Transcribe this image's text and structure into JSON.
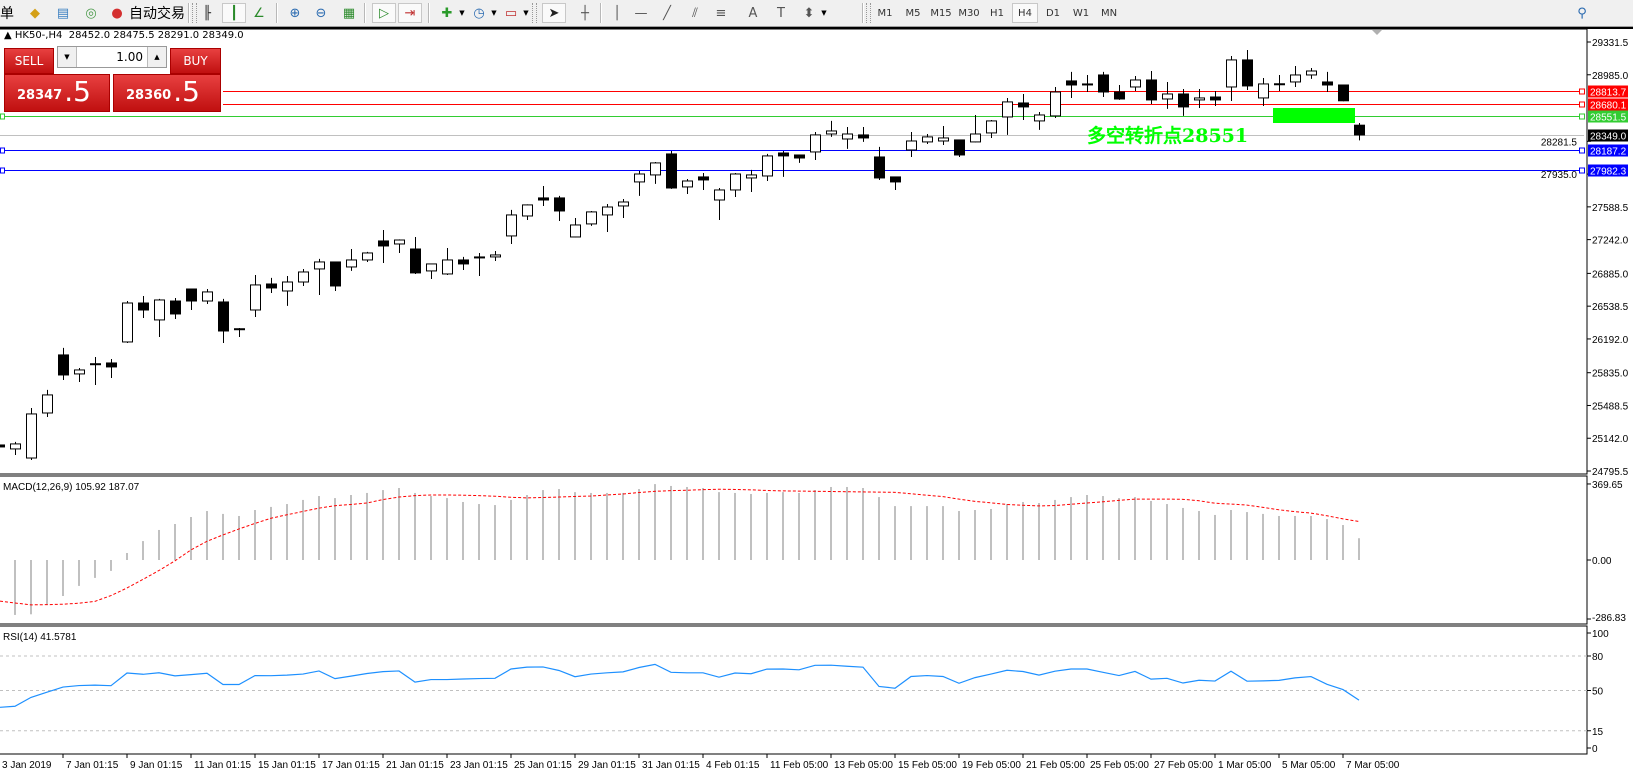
{
  "toolbar": {
    "items": [
      {
        "type": "text",
        "label": "单",
        "icon": "menu-text"
      },
      {
        "type": "icon",
        "icon": "folder-icon",
        "glyph": "◆",
        "color": "#d4a017"
      },
      {
        "type": "icon",
        "icon": "market-watch-icon",
        "glyph": "▤",
        "color": "#3a7fc0"
      },
      {
        "type": "icon",
        "icon": "signal-icon",
        "glyph": "◎",
        "color": "#4a9a4a"
      },
      {
        "type": "icon",
        "icon": "auto-trading-icon",
        "glyph": "●",
        "color": "#d43030"
      },
      {
        "type": "text",
        "label": "自动交易",
        "icon": "auto-trading-label"
      },
      {
        "type": "icon",
        "icon": "bar-chart-icon",
        "glyph": "╟",
        "color": "#333"
      },
      {
        "type": "icon",
        "icon": "candlestick-icon",
        "glyph": "┃",
        "color": "#2a8a2a",
        "selected": true
      },
      {
        "type": "icon",
        "icon": "line-chart-icon",
        "glyph": "∠",
        "color": "#2a8a2a"
      },
      {
        "type": "icon",
        "icon": "zoom-in-icon",
        "glyph": "⊕",
        "color": "#2a6ab0"
      },
      {
        "type": "icon",
        "icon": "zoom-out-icon",
        "glyph": "⊖",
        "color": "#2a6ab0"
      },
      {
        "type": "icon",
        "icon": "tile-windows-icon",
        "glyph": "▦",
        "color": "#2a8a2a"
      },
      {
        "type": "icon",
        "icon": "auto-scroll-icon",
        "glyph": "▷",
        "color": "#2a8a2a",
        "selected": true
      },
      {
        "type": "icon",
        "icon": "chart-shift-icon",
        "glyph": "⇥",
        "color": "#c03030",
        "selected": true
      },
      {
        "type": "icon",
        "icon": "new-indicator-icon",
        "glyph": "✚",
        "color": "#2a9a2a"
      },
      {
        "type": "icon",
        "icon": "periods-clock-icon",
        "glyph": "◷",
        "color": "#2a6ab0"
      },
      {
        "type": "icon",
        "icon": "templates-icon",
        "glyph": "▭",
        "color": "#c03030"
      },
      {
        "type": "icon",
        "icon": "cursor-arrow-icon",
        "glyph": "➤",
        "color": "#222",
        "selected": true
      },
      {
        "type": "icon",
        "icon": "crosshair-icon",
        "glyph": "┼",
        "color": "#555"
      },
      {
        "type": "icon",
        "icon": "vertical-line-icon",
        "glyph": "│",
        "color": "#555"
      },
      {
        "type": "icon",
        "icon": "horizontal-line-icon",
        "glyph": "—",
        "color": "#555"
      },
      {
        "type": "icon",
        "icon": "trendline-icon",
        "glyph": "╱",
        "color": "#555"
      },
      {
        "type": "icon",
        "icon": "equidistant-channel-icon",
        "glyph": "⫽",
        "color": "#555"
      },
      {
        "type": "icon",
        "icon": "fibonacci-icon",
        "glyph": "≡",
        "color": "#555"
      },
      {
        "type": "icon",
        "icon": "text-icon",
        "glyph": "A",
        "color": "#555"
      },
      {
        "type": "icon",
        "icon": "text-label-icon",
        "glyph": "T",
        "color": "#555"
      },
      {
        "type": "icon",
        "icon": "arrows-icon",
        "glyph": "⬍",
        "color": "#555"
      }
    ],
    "timeframes": [
      "M1",
      "M5",
      "M15",
      "M30",
      "H1",
      "H4",
      "D1",
      "W1",
      "MN"
    ],
    "active_timeframe": "H4",
    "search_icon": "search-icon"
  },
  "chart": {
    "symbol_line": "HK50-,H4  28452.0 28475.5 28291.0 28349.0",
    "annotation": "多空转折点28551",
    "annotation_color": "#00ff00",
    "highlight_color": "#00ff00",
    "price_axis": [
      "29331.5",
      "28985.0",
      "28281.5",
      "27935.0",
      "27588.5",
      "27242.0",
      "26885.0",
      "26538.5",
      "26192.0",
      "25835.0",
      "25488.5",
      "25142.0",
      "24795.5"
    ],
    "lines": [
      {
        "price": "28813.7",
        "color": "#ff0000",
        "from_bar": 14
      },
      {
        "price": "28680.1",
        "color": "#ff0000",
        "from_bar": 14
      },
      {
        "price": "28551.5",
        "color": "#32cd32",
        "from_bar": 0
      },
      {
        "price": "28349.0",
        "color": "#c0c0c0",
        "label_bg": "#000000",
        "from_bar": 0
      },
      {
        "price": "28187.2",
        "color": "#0000ff",
        "from_bar": 0
      },
      {
        "price": "27982.3",
        "color": "#0000ff",
        "from_bar": 0
      }
    ],
    "bull_color": "#ffffff",
    "bear_color": "#000000",
    "ohlc": [
      [
        25071,
        25082,
        25039,
        25050
      ],
      [
        25029,
        25103,
        24965,
        25082
      ],
      [
        24933,
        25462,
        24912,
        25399
      ],
      [
        25409,
        25653,
        25367,
        25600
      ],
      [
        26023,
        26097,
        25758,
        25811
      ],
      [
        25822,
        25885,
        25737,
        25864
      ],
      [
        25927,
        26001,
        25705,
        25930
      ],
      [
        25938,
        25980,
        25779,
        25896
      ],
      [
        26160,
        26593,
        26149,
        26572
      ],
      [
        26572,
        26646,
        26414,
        26498
      ],
      [
        26393,
        26615,
        26213,
        26604
      ],
      [
        26593,
        26625,
        26403,
        26456
      ],
      [
        26720,
        26725,
        26498,
        26593
      ],
      [
        26593,
        26720,
        26562,
        26689
      ],
      [
        26583,
        26615,
        26149,
        26276
      ],
      [
        26298,
        26308,
        26213,
        26300
      ],
      [
        26498,
        26868,
        26424,
        26763
      ],
      [
        26773,
        26837,
        26678,
        26731
      ],
      [
        26699,
        26858,
        26541,
        26794
      ],
      [
        26794,
        26932,
        26752,
        26900
      ],
      [
        26932,
        27038,
        26657,
        27006
      ],
      [
        27006,
        27010,
        26699,
        26752
      ],
      [
        26953,
        27143,
        26911,
        27027
      ],
      [
        27027,
        27112,
        27006,
        27101
      ],
      [
        27228,
        27344,
        26995,
        27175
      ],
      [
        27196,
        27245,
        27101,
        27238
      ],
      [
        27143,
        27270,
        26879,
        26890
      ],
      [
        26911,
        26990,
        26826,
        26985
      ],
      [
        26879,
        27154,
        26868,
        27027
      ],
      [
        27027,
        27059,
        26921,
        26985
      ],
      [
        27059,
        27101,
        26858,
        27055
      ],
      [
        27059,
        27122,
        27016,
        27080
      ],
      [
        27281,
        27556,
        27196,
        27503
      ],
      [
        27492,
        27615,
        27450,
        27609
      ],
      [
        27683,
        27809,
        27598,
        27661
      ],
      [
        27683,
        27704,
        27439,
        27545
      ],
      [
        27270,
        27471,
        27265,
        27397
      ],
      [
        27408,
        27545,
        27387,
        27535
      ],
      [
        27503,
        27619,
        27323,
        27587
      ],
      [
        27598,
        27672,
        27471,
        27640
      ],
      [
        27852,
        27968,
        27704,
        27936
      ],
      [
        27926,
        28063,
        27831,
        28053
      ],
      [
        28148,
        28179,
        27778,
        27788
      ],
      [
        27799,
        27883,
        27725,
        27862
      ],
      [
        27905,
        27947,
        27767,
        27873
      ],
      [
        27661,
        27788,
        27450,
        27767
      ],
      [
        27767,
        27947,
        27693,
        27936
      ],
      [
        27894,
        27979,
        27746,
        27926
      ],
      [
        27915,
        28148,
        27862,
        28127
      ],
      [
        28158,
        28179,
        27905,
        28127
      ],
      [
        28137,
        28140,
        28053,
        28105
      ],
      [
        28169,
        28380,
        28084,
        28349
      ],
      [
        28359,
        28497,
        28328,
        28391
      ],
      [
        28306,
        28433,
        28201,
        28359
      ],
      [
        28349,
        28433,
        28275,
        28317
      ],
      [
        28116,
        28222,
        27873,
        27894
      ],
      [
        27905,
        27910,
        27767,
        27852
      ],
      [
        28190,
        28380,
        28116,
        28285
      ],
      [
        28275,
        28359,
        28253,
        28328
      ],
      [
        28285,
        28444,
        28243,
        28317
      ],
      [
        28296,
        28300,
        28116,
        28137
      ],
      [
        28275,
        28560,
        28270,
        28359
      ],
      [
        28370,
        28507,
        28317,
        28497
      ],
      [
        28539,
        28740,
        28349,
        28698
      ],
      [
        28687,
        28782,
        28507,
        28645
      ],
      [
        28497,
        28592,
        28402,
        28560
      ],
      [
        28550,
        28856,
        28528,
        28803
      ],
      [
        28920,
        29015,
        28740,
        28877
      ],
      [
        28888,
        28983,
        28803,
        28885
      ],
      [
        28983,
        29015,
        28750,
        28803
      ],
      [
        28803,
        28877,
        28719,
        28729
      ],
      [
        28856,
        28972,
        28814,
        28930
      ],
      [
        28930,
        29025,
        28676,
        28719
      ],
      [
        28729,
        28909,
        28624,
        28782
      ],
      [
        28782,
        28835,
        28550,
        28645
      ],
      [
        28719,
        28835,
        28634,
        28740
      ],
      [
        28750,
        28814,
        28655,
        28719
      ],
      [
        28856,
        29184,
        28708,
        29142
      ],
      [
        29142,
        29247,
        28824,
        28867
      ],
      [
        28740,
        28951,
        28655,
        28888
      ],
      [
        28888,
        28983,
        28814,
        28890
      ],
      [
        28909,
        29078,
        28856,
        28983
      ],
      [
        28983,
        29057,
        28941,
        29025
      ],
      [
        28909,
        29015,
        28803,
        28877
      ],
      [
        28877,
        28880,
        28705,
        28710
      ],
      [
        28452,
        28475.5,
        28291,
        28349
      ]
    ],
    "time_labels": [
      {
        "bar": 0,
        "text": "3 Jan 2019"
      },
      {
        "bar": 4,
        "text": "7 Jan 01:15"
      },
      {
        "bar": 8,
        "text": "9 Jan 01:15"
      },
      {
        "bar": 12,
        "text": "11 Jan 01:15"
      },
      {
        "bar": 16,
        "text": "15 Jan 01:15"
      },
      {
        "bar": 20,
        "text": "17 Jan 01:15"
      },
      {
        "bar": 24,
        "text": "21 Jan 01:15"
      },
      {
        "bar": 28,
        "text": "23 Jan 01:15"
      },
      {
        "bar": 32,
        "text": "25 Jan 01:15"
      },
      {
        "bar": 36,
        "text": "29 Jan 01:15"
      },
      {
        "bar": 40,
        "text": "31 Jan 01:15"
      },
      {
        "bar": 44,
        "text": "4 Feb 01:15"
      },
      {
        "bar": 48,
        "text": "11 Feb 05:00"
      },
      {
        "bar": 52,
        "text": "13 Feb 05:00"
      },
      {
        "bar": 56,
        "text": "15 Feb 05:00"
      },
      {
        "bar": 60,
        "text": "19 Feb 05:00"
      },
      {
        "bar": 64,
        "text": "21 Feb 05:00"
      },
      {
        "bar": 68,
        "text": "25 Feb 05:00"
      },
      {
        "bar": 72,
        "text": "27 Feb 05:00"
      },
      {
        "bar": 76,
        "text": "1 Mar 05:00"
      },
      {
        "bar": 80,
        "text": "5 Mar 05:00"
      },
      {
        "bar": 84,
        "text": "7 Mar 05:00"
      }
    ]
  },
  "trade_panel": {
    "sell_label": "SELL",
    "buy_label": "BUY",
    "lot": "1.00",
    "sell_price_main": "28347",
    "sell_price_frac": ".5",
    "buy_price_main": "28360",
    "buy_price_frac": ".5"
  },
  "macd": {
    "label": "MACD(12,26,9) 105.92 187.07",
    "axis": [
      "369.65",
      "0.00",
      "-286.83"
    ],
    "hist_color": "#c0c0c0",
    "signal_color": "#ff0000",
    "hist": [
      -270,
      -267,
      -264,
      -219,
      -175,
      -126,
      -87,
      -53,
      34,
      92,
      146,
      175,
      209,
      238,
      224,
      214,
      243,
      258,
      272,
      292,
      311,
      301,
      316,
      326,
      340,
      350,
      326,
      311,
      301,
      282,
      272,
      267,
      292,
      316,
      340,
      345,
      330,
      326,
      326,
      326,
      345,
      369,
      360,
      355,
      350,
      330,
      326,
      321,
      326,
      330,
      326,
      340,
      355,
      355,
      350,
      306,
      262,
      262,
      262,
      262,
      238,
      243,
      248,
      272,
      282,
      277,
      292,
      306,
      316,
      311,
      301,
      306,
      287,
      272,
      253,
      238,
      219,
      243,
      233,
      224,
      214,
      214,
      214,
      199,
      170,
      105.92
    ],
    "signal": [
      -200,
      -209,
      -218,
      -217,
      -215,
      -210,
      -201,
      -173,
      -136,
      -94,
      -51,
      -4,
      49,
      91,
      122,
      151,
      178,
      203,
      220,
      236,
      252,
      264,
      270,
      277,
      294,
      306,
      313,
      316,
      316,
      315,
      313,
      310,
      305,
      302,
      304,
      306,
      309,
      311,
      316,
      321,
      328,
      334,
      337,
      339,
      342,
      344,
      343,
      341,
      338,
      336,
      335,
      334,
      333,
      332,
      331,
      330,
      329,
      322,
      315,
      308,
      296,
      285,
      278,
      270,
      266,
      263,
      265,
      271,
      277,
      283,
      290,
      296,
      296,
      296,
      295,
      288,
      276,
      272,
      267,
      256,
      244,
      235,
      228,
      215,
      200,
      187.07
    ]
  },
  "rsi": {
    "label": "RSI(14) 41.5781",
    "axis": [
      "100",
      "80",
      "50",
      "15",
      "0"
    ],
    "levels": [
      80,
      50,
      15
    ],
    "color": "#1e90ff",
    "values": [
      35.4,
      36.3,
      44,
      48.5,
      53,
      54.3,
      54.7,
      54.2,
      65.2,
      64.1,
      65.4,
      62.7,
      63.8,
      65,
      55.2,
      55.2,
      63,
      62.9,
      63.4,
      64.3,
      67,
      60.3,
      62.5,
      64.8,
      66.4,
      67,
      57.3,
      59.5,
      59.5,
      60,
      60.4,
      60.6,
      68.7,
      70.3,
      70.5,
      67.4,
      62,
      64.3,
      65.4,
      66.2,
      70,
      72.7,
      65.8,
      65.4,
      65.4,
      61.6,
      65.2,
      64.6,
      68.6,
      68.7,
      68,
      71.9,
      72,
      71.1,
      70.3,
      53.5,
      52,
      62.2,
      63,
      62.2,
      56.3,
      61.2,
      64.3,
      67.6,
      66.5,
      63.4,
      66.8,
      68.7,
      68.7,
      65.8,
      63,
      66.6,
      59.9,
      60.6,
      56.5,
      58.9,
      58.2,
      66.8,
      58.1,
      58.4,
      58.8,
      61,
      62.1,
      55.4,
      50.8,
      41.5781
    ]
  }
}
